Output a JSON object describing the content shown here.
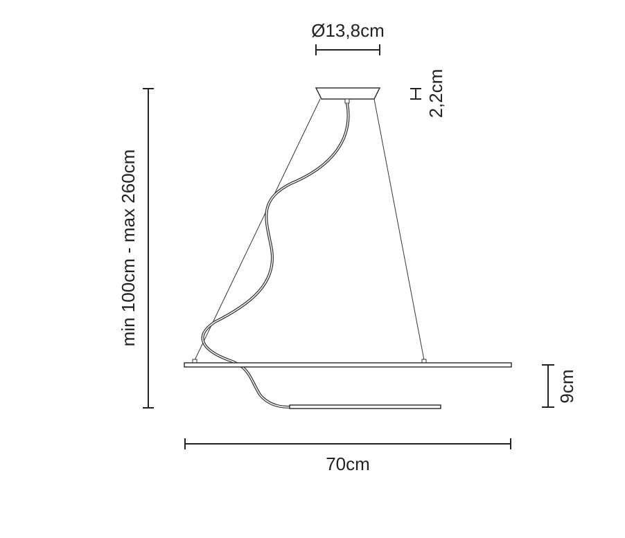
{
  "dimensions": {
    "canopy_diameter": "Ø13,8cm",
    "canopy_height": "2,2cm",
    "suspension_height": "min 100cm - max 260cm",
    "body_height": "9cm",
    "width": "70cm"
  }
}
